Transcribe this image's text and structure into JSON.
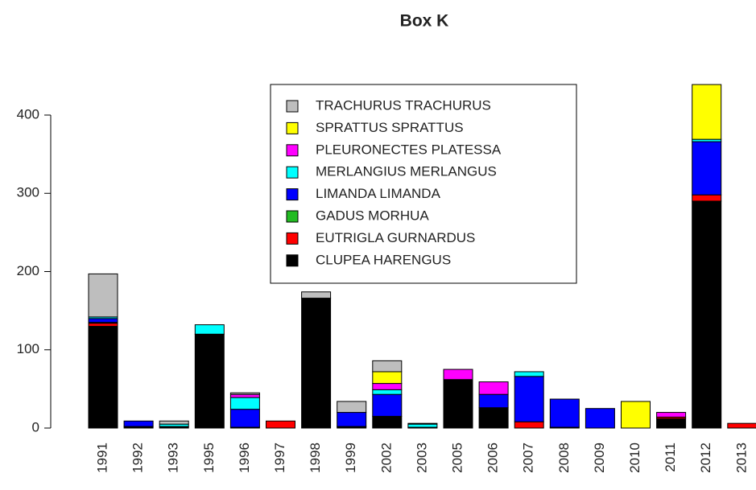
{
  "chart_data": {
    "type": "stacked_bar",
    "title": "Box K",
    "categories": [
      "1991",
      "1992",
      "1993",
      "1995",
      "1996",
      "1997",
      "1998",
      "1999",
      "2002",
      "2003",
      "2005",
      "2006",
      "2007",
      "2008",
      "2009",
      "2010",
      "2011",
      "2012",
      "2013"
    ],
    "series": [
      {
        "name": "CLUPEA HARENGUS",
        "color": "#000000",
        "values": [
          130,
          2,
          2,
          120,
          1,
          0,
          166,
          2,
          15,
          1,
          62,
          26,
          0,
          1,
          0,
          0,
          12,
          290,
          0
        ]
      },
      {
        "name": "EUTRIGLA GURNARDUS",
        "color": "#ff0000",
        "values": [
          4,
          0,
          0,
          0,
          0,
          9,
          0,
          0,
          0,
          0,
          0,
          0,
          8,
          0,
          0,
          0,
          2,
          8,
          6
        ]
      },
      {
        "name": "GADUS MORHUA",
        "color": "#22bb22",
        "values": [
          1,
          0,
          0,
          0,
          0,
          0,
          0,
          0,
          0,
          0,
          0,
          0,
          0,
          0,
          0,
          0,
          0,
          0,
          0
        ]
      },
      {
        "name": "LIMANDA LIMANDA",
        "color": "#0000ff",
        "values": [
          5,
          7,
          0,
          0,
          23,
          0,
          0,
          18,
          28,
          0,
          0,
          17,
          58,
          36,
          25,
          0,
          0,
          68,
          0
        ]
      },
      {
        "name": "MERLANGIUS MERLANGUS",
        "color": "#00ffff",
        "values": [
          2,
          0,
          3,
          12,
          15,
          0,
          0,
          0,
          6,
          4,
          0,
          0,
          6,
          0,
          0,
          0,
          0,
          3,
          0
        ]
      },
      {
        "name": "PLEURONECTES PLATESSA",
        "color": "#ff00ff",
        "values": [
          0,
          0,
          0,
          0,
          4,
          0,
          0,
          0,
          8,
          0,
          13,
          16,
          0,
          0,
          0,
          0,
          6,
          0,
          0
        ]
      },
      {
        "name": "SPRATTUS SPRATTUS",
        "color": "#ffff00",
        "values": [
          0,
          0,
          0,
          0,
          0,
          0,
          0,
          0,
          15,
          0,
          0,
          0,
          0,
          0,
          0,
          34,
          0,
          70,
          0
        ]
      },
      {
        "name": "TRACHURUS TRACHURUS",
        "color": "#bebebe",
        "values": [
          55,
          0,
          4,
          0,
          2,
          0,
          8,
          14,
          14,
          1,
          0,
          0,
          0,
          0,
          0,
          0,
          0,
          0,
          0
        ]
      }
    ],
    "ylim": [
      0,
      440
    ],
    "yticks": [
      0,
      100,
      200,
      300,
      400
    ]
  }
}
